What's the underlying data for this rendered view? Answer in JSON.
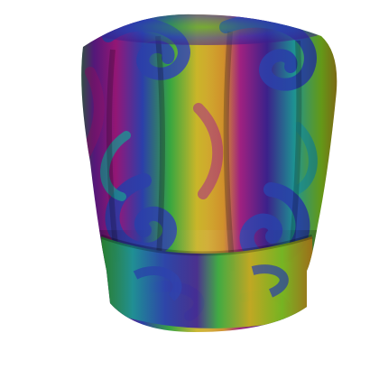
{
  "scene": {
    "subject": "chef-hat-3d-render",
    "background_color": "#ffffff",
    "palette": {
      "green": "#2fa83a",
      "lime": "#7ec21e",
      "yellow": "#c8b21a",
      "orange": "#d08a1e",
      "teal": "#1f9a9a",
      "blue": "#2a3fb0",
      "indigo": "#3a1e8e",
      "purple": "#6a1e9a",
      "magenta": "#a0187e"
    }
  }
}
